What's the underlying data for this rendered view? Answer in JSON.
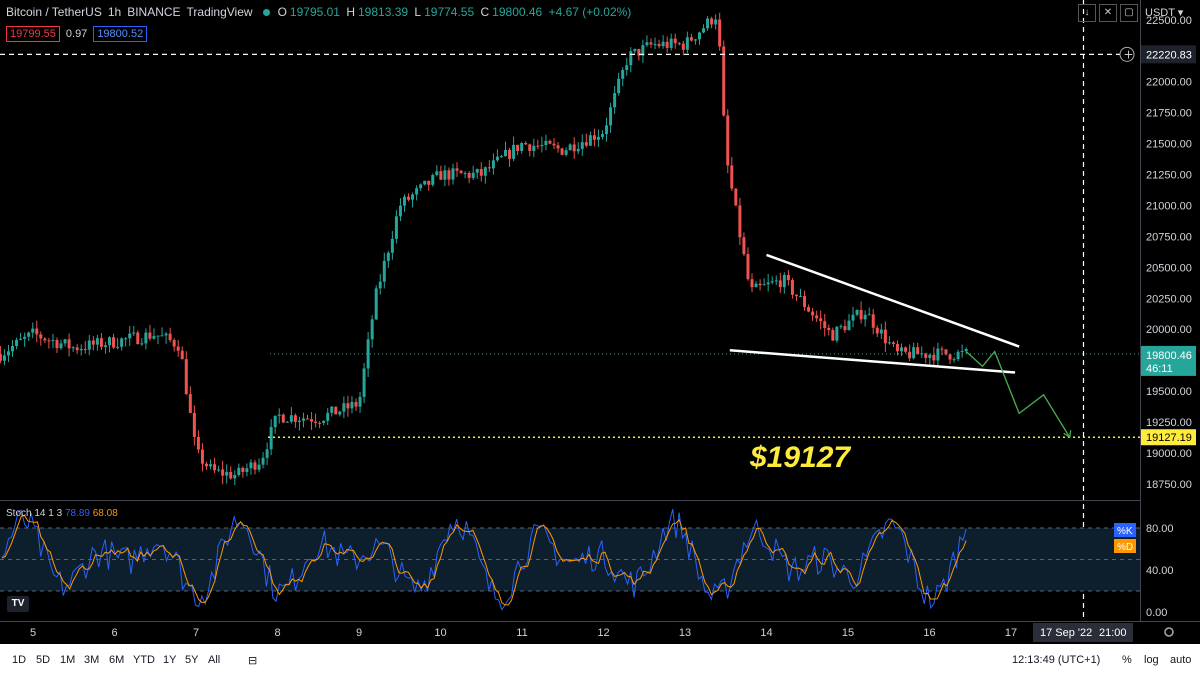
{
  "header": {
    "symbol": "Bitcoin / TetherUS",
    "interval": "1h",
    "exchange": "BINANCE",
    "source": "TradingView",
    "o_label": "O",
    "o_value": "19795.01",
    "h_label": "H",
    "h_value": "19813.39",
    "l_label": "L",
    "l_value": "19774.55",
    "c_label": "C",
    "c_value": "19800.46",
    "change": "+4.67 (+0.02%)",
    "bid": "19799.55",
    "spread": "0.97",
    "ask": "19800.52"
  },
  "currency": "USDT",
  "annotation_text": "$19127",
  "stoch": {
    "label": "Stoch 14 1 3",
    "k_value": "78.89",
    "d_value": "68.08",
    "k_tag": "%K",
    "d_tag": "%D",
    "axis_labels": [
      "80.00",
      "40.00",
      "0.00"
    ]
  },
  "price_tags": {
    "crosshair_price": "22220.83",
    "last_price": "19800.46",
    "countdown": "46:11",
    "target_price": "19127.19"
  },
  "time_axis": {
    "labels": [
      "5",
      "6",
      "7",
      "8",
      "9",
      "10",
      "11",
      "12",
      "13",
      "14",
      "15",
      "16",
      "17"
    ],
    "crosshair_label": "17 Sep '22",
    "crosshair_time": "21:00"
  },
  "bottom_bar": {
    "timeframes": [
      "1D",
      "5D",
      "1M",
      "3M",
      "6M",
      "YTD",
      "1Y",
      "5Y",
      "All"
    ],
    "clock": "12:13:49 (UTC+1)",
    "percent": "%",
    "log": "log",
    "auto": "auto"
  },
  "colors": {
    "up": "#26a69a",
    "down": "#ef5350",
    "background": "#000000",
    "annotation": "#ffeb3b",
    "stoch_k": "#2962ff",
    "stoch_d": "#ff9800",
    "trendline": "#ffffff",
    "projection": "#4caf50"
  },
  "icons": {
    "tv_logo": "tradingview-logo-icon",
    "settings": "gear-icon",
    "date_range": "calendar-range-icon",
    "add_alert": "plus-circle-icon"
  },
  "chart_data": {
    "type": "candlestick",
    "title": "Bitcoin / TetherUS · 1h · BINANCE",
    "y_axis_ticks": [
      22500,
      22250,
      22000,
      21750,
      21500,
      21250,
      21000,
      20750,
      20500,
      20250,
      20000,
      19750,
      19500,
      19250,
      19000,
      18750
    ],
    "ylim": [
      18620,
      22660
    ],
    "x_ticks": [
      "5",
      "6",
      "7",
      "8",
      "9",
      "10",
      "11",
      "12",
      "13",
      "14",
      "15",
      "16",
      "17"
    ],
    "price_path": [
      {
        "day": 4.6,
        "close": 19800
      },
      {
        "day": 5.0,
        "close": 19960
      },
      {
        "day": 5.5,
        "close": 19850
      },
      {
        "day": 6.0,
        "close": 19900
      },
      {
        "day": 6.5,
        "close": 19960
      },
      {
        "day": 6.8,
        "close": 19870
      },
      {
        "day": 7.0,
        "close": 19000
      },
      {
        "day": 7.2,
        "close": 18850
      },
      {
        "day": 7.5,
        "close": 18820
      },
      {
        "day": 7.8,
        "close": 18950
      },
      {
        "day": 8.0,
        "close": 19300
      },
      {
        "day": 8.5,
        "close": 19280
      },
      {
        "day": 9.0,
        "close": 19400
      },
      {
        "day": 9.2,
        "close": 20250
      },
      {
        "day": 9.5,
        "close": 21000
      },
      {
        "day": 10.0,
        "close": 21250
      },
      {
        "day": 10.5,
        "close": 21250
      },
      {
        "day": 11.0,
        "close": 21500
      },
      {
        "day": 11.5,
        "close": 21450
      },
      {
        "day": 12.0,
        "close": 21600
      },
      {
        "day": 12.3,
        "close": 22200
      },
      {
        "day": 12.6,
        "close": 22300
      },
      {
        "day": 13.0,
        "close": 22300
      },
      {
        "day": 13.4,
        "close": 22550
      },
      {
        "day": 13.5,
        "close": 21400
      },
      {
        "day": 13.8,
        "close": 20300
      },
      {
        "day": 14.2,
        "close": 20400
      },
      {
        "day": 14.8,
        "close": 19950
      },
      {
        "day": 15.2,
        "close": 20150
      },
      {
        "day": 15.6,
        "close": 19800
      },
      {
        "day": 16.0,
        "close": 19800
      },
      {
        "day": 16.45,
        "close": 19800
      }
    ],
    "levels": {
      "crosshair": 22220.83,
      "last": 19800.46,
      "target": 19127.19
    },
    "trendlines": [
      {
        "from": {
          "day": 14.0,
          "price": 20600
        },
        "to": {
          "day": 17.1,
          "price": 19860
        }
      },
      {
        "from": {
          "day": 13.55,
          "price": 19830
        },
        "to": {
          "day": 17.05,
          "price": 19650
        }
      }
    ],
    "projection": [
      {
        "day": 16.45,
        "price": 19820
      },
      {
        "day": 16.65,
        "price": 19700
      },
      {
        "day": 16.8,
        "price": 19820
      },
      {
        "day": 17.1,
        "price": 19320
      },
      {
        "day": 17.4,
        "price": 19470
      },
      {
        "day": 17.72,
        "price": 19127
      }
    ],
    "stochastic": {
      "k_last": 78.89,
      "d_last": 68.08,
      "bands": [
        80,
        50,
        20
      ],
      "ylim": [
        0,
        100
      ]
    }
  }
}
